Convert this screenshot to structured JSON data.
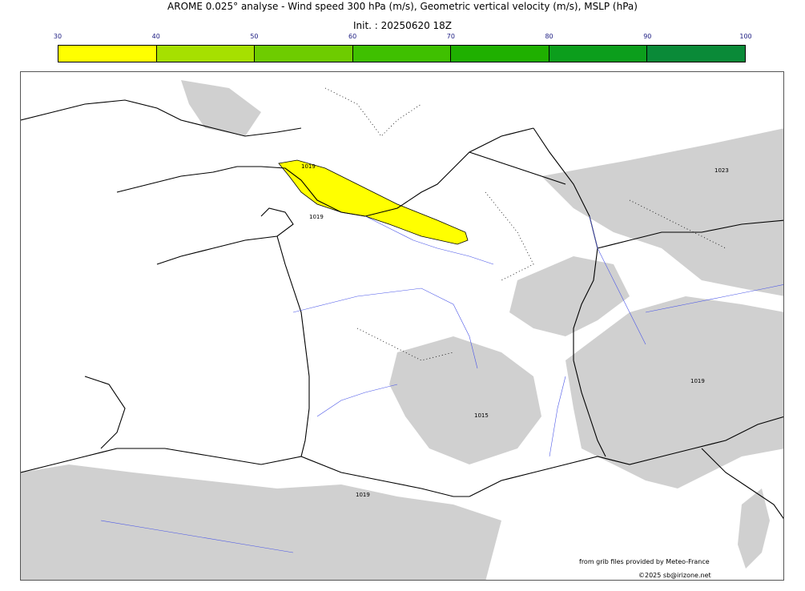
{
  "header": {
    "title": "AROME 0.025° analyse - Wind speed 300 hPa (m/s), Geometric vertical velocity (m/s), MSLP (hPa)",
    "subtitle": "Init. : 20250620 18Z"
  },
  "colorbar": {
    "ticks": [
      "30",
      "40",
      "50",
      "60",
      "70",
      "80",
      "90",
      "100"
    ],
    "colors": [
      "#ffff00",
      "#a6e000",
      "#6ecc00",
      "#3fc000",
      "#1fb000",
      "#0c9e1c",
      "#0a8a38",
      "#0a7a48"
    ]
  },
  "map": {
    "isobar_labels": [
      "1019",
      "1023",
      "1019",
      "1015",
      "1019",
      "1019"
    ],
    "jet_color": "#ffff00",
    "terrain_color": "#d0d0d0",
    "river_color": "#4a56e8"
  },
  "credits": {
    "source": "from grib files provided by Meteo-France",
    "copyright": "©2025 sb@irizone.net"
  }
}
